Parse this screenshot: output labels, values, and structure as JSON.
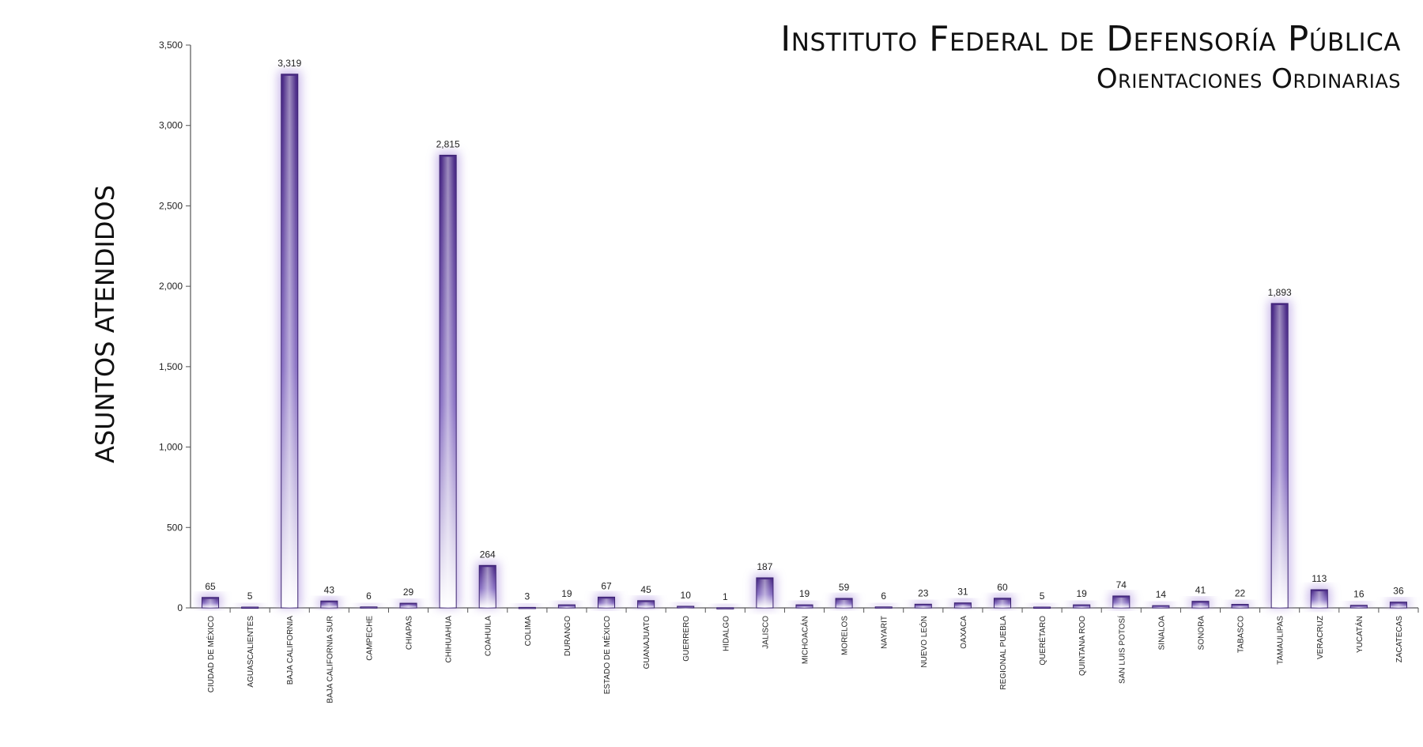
{
  "chart_data": {
    "type": "bar",
    "title": "Instituto Federal de Defensoría Pública",
    "subtitle": "Orientaciones Ordinarias",
    "ylabel": "ASUNTOS ATENDIDOS",
    "xlabel": "",
    "ylim": [
      0,
      3500
    ],
    "yticks": [
      "0",
      "500",
      "1,000",
      "1,500",
      "2,000",
      "2,500",
      "3,000",
      "3,500"
    ],
    "grid": false,
    "legend": "none",
    "bar_color": "#5b3a96",
    "glow_color": "#b9a3e3",
    "categories": [
      "CIUDAD DE MÉXICO",
      "AGUASCALIENTES",
      "BAJA CALIFORNIA",
      "BAJA CALIFORNIA SUR",
      "CAMPECHE",
      "CHIAPAS",
      "CHIHUAHUA",
      "COAHUILA",
      "COLIMA",
      "DURANGO",
      "ESTADO DE MÉXICO",
      "GUANAJUATO",
      "GUERRERO",
      "HIDALGO",
      "JALISCO",
      "MICHOACÁN",
      "MORELOS",
      "NAYARIT",
      "NUEVO LEÓN",
      "OAXACA",
      "REGIONAL PUEBLA",
      "QUERÉTARO",
      "QUINTANA ROO",
      "SAN LUIS POTOSÍ",
      "SINALOA",
      "SONORA",
      "TABASCO",
      "TAMAULIPAS",
      "VERACRUZ",
      "YUCATÁN",
      "ZACATECAS"
    ],
    "values": [
      65,
      5,
      3319,
      43,
      6,
      29,
      2815,
      264,
      3,
      19,
      67,
      45,
      10,
      1,
      187,
      19,
      59,
      6,
      23,
      31,
      60,
      5,
      19,
      74,
      14,
      41,
      22,
      1893,
      113,
      16,
      36
    ],
    "data_labels": [
      "65",
      "5",
      "3,319",
      "43",
      "6",
      "29",
      "2,815",
      "264",
      "3",
      "19",
      "67",
      "45",
      "10",
      "1",
      "187",
      "19",
      "59",
      "6",
      "23",
      "31",
      "60",
      "5",
      "19",
      "74",
      "14",
      "41",
      "22",
      "1,893",
      "113",
      "16",
      "36"
    ]
  }
}
